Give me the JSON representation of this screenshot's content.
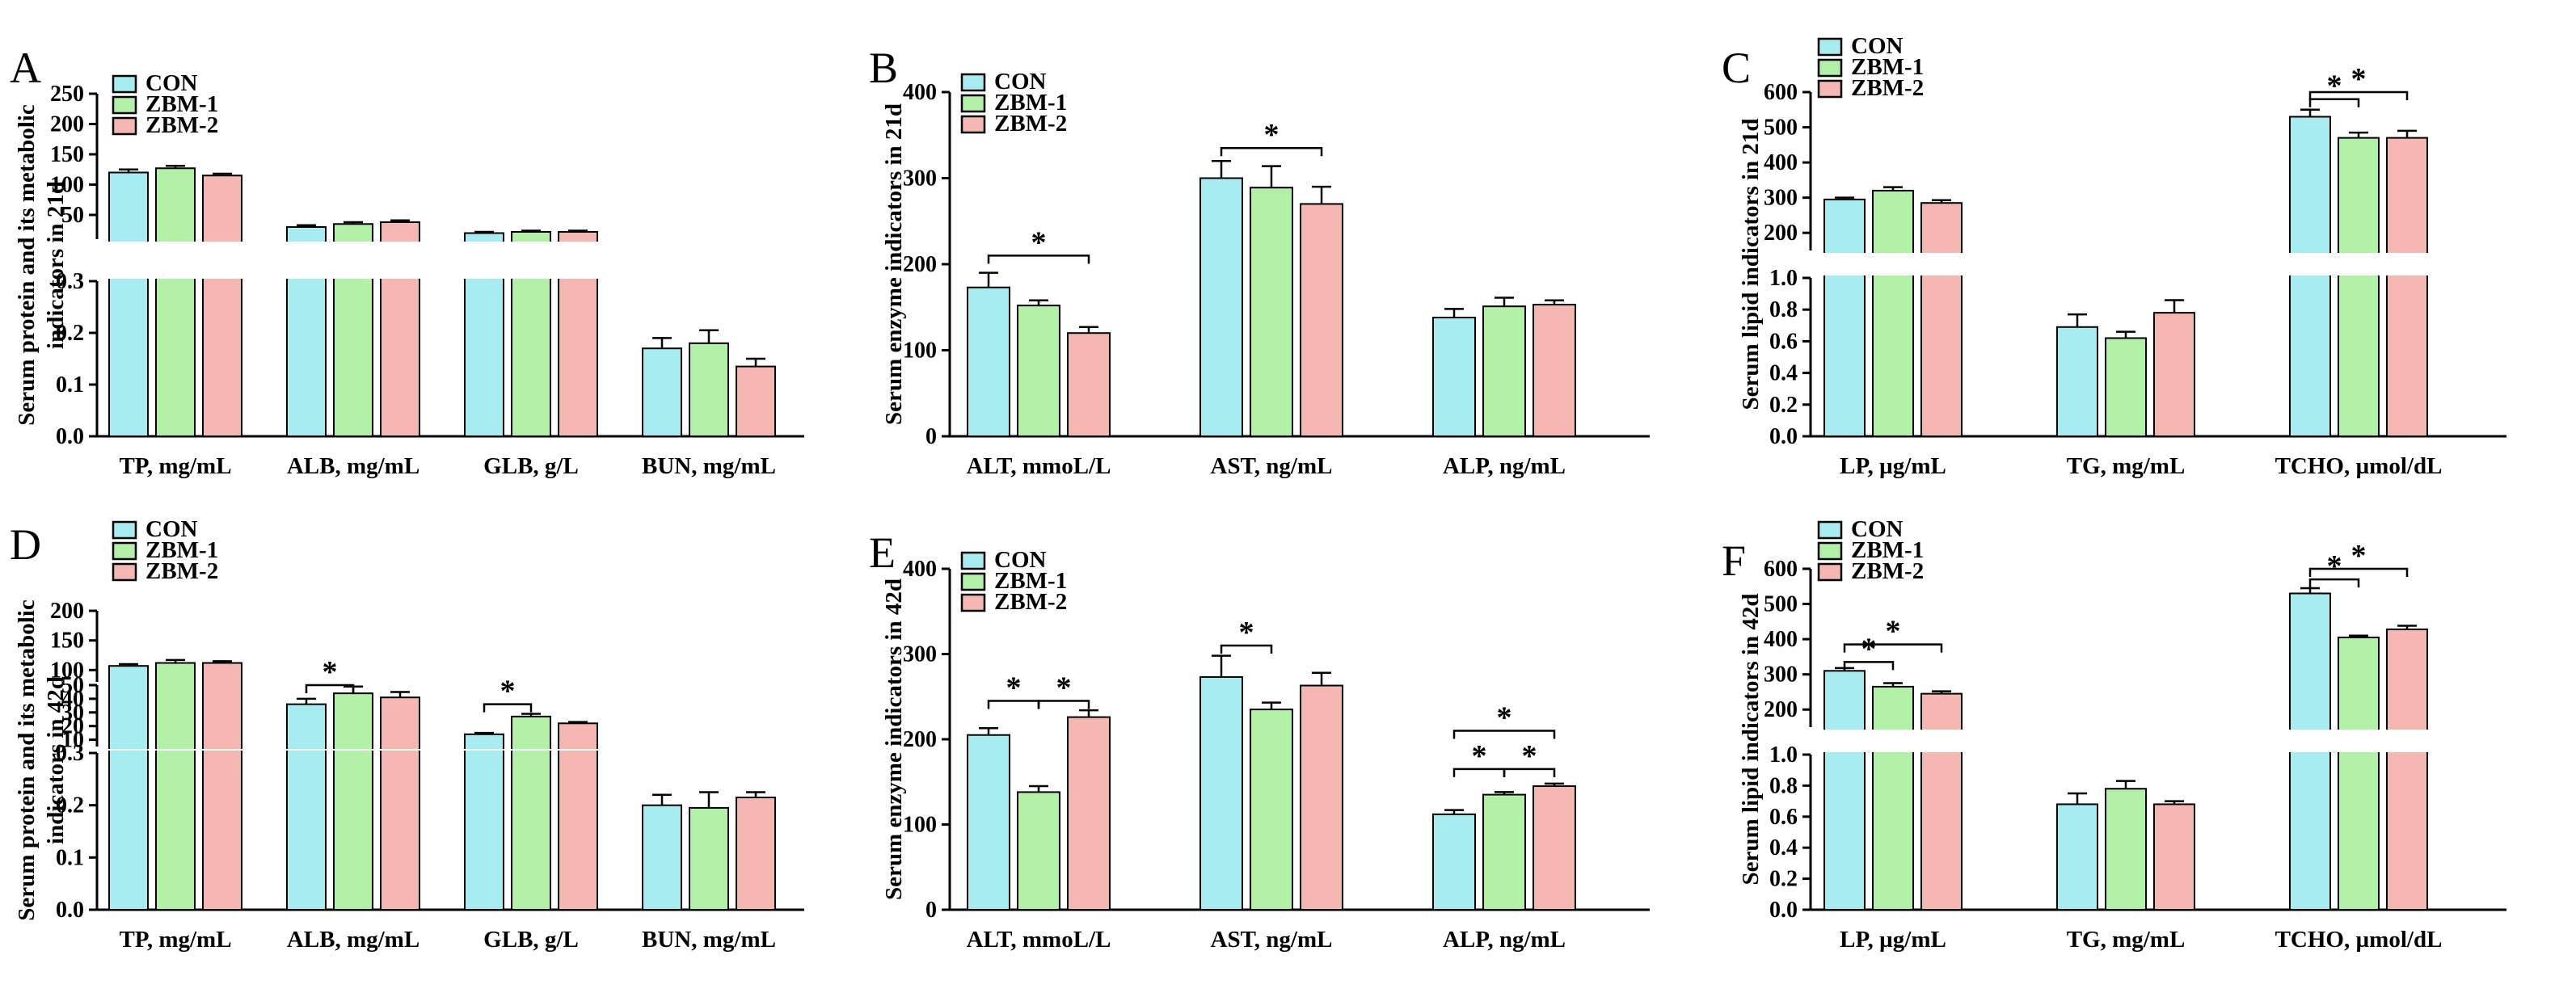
{
  "colors": {
    "CON": "#a6ecf0",
    "ZBM-1": "#b2f0a8",
    "ZBM-2": "#f5b7b1"
  },
  "legend": [
    "CON",
    "ZBM-1",
    "ZBM-2"
  ],
  "chart_data": [
    {
      "panel": "A",
      "type": "bar",
      "ylabel_lines": [
        "Serum protein and its metabolic",
        "indicators in 21d"
      ],
      "categories": [
        "TP, mg/mL",
        "ALB, mg/mL",
        "GLB, g/L",
        "BUN, mg/mL"
      ],
      "series": [
        {
          "name": "CON",
          "values": [
            120,
            30,
            20,
            0.17
          ],
          "errors": [
            5,
            3,
            2,
            0.02
          ]
        },
        {
          "name": "ZBM-1",
          "values": [
            127,
            35,
            22,
            0.18
          ],
          "errors": [
            4,
            3,
            2,
            0.025
          ]
        },
        {
          "name": "ZBM-2",
          "values": [
            115,
            38,
            22,
            0.135
          ],
          "errors": [
            3,
            3,
            2,
            0.015
          ]
        }
      ],
      "segments": [
        {
          "range": [
            0,
            0.3
          ],
          "ticks": [
            "0.0",
            "0.1",
            "0.2",
            "0.3"
          ]
        },
        {
          "range": [
            10,
            250
          ],
          "ticks": [
            "50",
            "100",
            "150",
            "200",
            "250"
          ]
        }
      ],
      "significance": []
    },
    {
      "panel": "B",
      "type": "bar",
      "ylabel_lines": [
        "Serum enzyme indicators in 21d"
      ],
      "categories": [
        "ALT, mmoL/L",
        "AST, ng/mL",
        "ALP, ng/mL"
      ],
      "series": [
        {
          "name": "CON",
          "values": [
            173,
            300,
            138
          ],
          "errors": [
            17,
            20,
            10
          ]
        },
        {
          "name": "ZBM-1",
          "values": [
            152,
            289,
            151
          ],
          "errors": [
            6,
            25,
            10
          ]
        },
        {
          "name": "ZBM-2",
          "values": [
            120,
            270,
            153
          ],
          "errors": [
            7,
            20,
            5
          ]
        }
      ],
      "segments": [
        {
          "range": [
            0,
            400
          ],
          "ticks": [
            "0",
            "100",
            "200",
            "300",
            "400"
          ]
        }
      ],
      "significance": [
        {
          "group": 0,
          "from": 0,
          "to": 2,
          "y": 210,
          "label": "*"
        },
        {
          "group": 1,
          "from": 0,
          "to": 2,
          "y": 335,
          "label": "*"
        }
      ]
    },
    {
      "panel": "C",
      "type": "bar",
      "ylabel_lines": [
        "Serum lipid indicators in 21d"
      ],
      "categories": [
        "LP, µg/mL",
        "TG, mg/mL",
        "TCHO, µmol/dL"
      ],
      "series": [
        {
          "name": "CON",
          "values": [
            295,
            0.69,
            530
          ],
          "errors": [
            5,
            0.08,
            20
          ]
        },
        {
          "name": "ZBM-1",
          "values": [
            320,
            0.62,
            470
          ],
          "errors": [
            10,
            0.04,
            15
          ]
        },
        {
          "name": "ZBM-2",
          "values": [
            285,
            0.78,
            470
          ],
          "errors": [
            8,
            0.08,
            20
          ]
        }
      ],
      "segments": [
        {
          "range": [
            0,
            1.0
          ],
          "ticks": [
            "0.0",
            "0.2",
            "0.4",
            "0.6",
            "0.8",
            "1.0"
          ]
        },
        {
          "range": [
            150,
            600
          ],
          "ticks": [
            "200",
            "300",
            "400",
            "500",
            "600"
          ]
        }
      ],
      "significance": [
        {
          "group": 2,
          "from": 0,
          "to": 1,
          "y": 580,
          "label": "*"
        },
        {
          "group": 2,
          "from": 0,
          "to": 2,
          "y": 630,
          "label": "*"
        }
      ]
    },
    {
      "panel": "D",
      "type": "bar",
      "ylabel_lines": [
        "Serum protein and its metabolic",
        "indicators in 42d"
      ],
      "categories": [
        "TP, mg/mL",
        "ALB, mg/mL",
        "GLB, g/L",
        "BUN, mg/mL"
      ],
      "series": [
        {
          "name": "CON",
          "values": [
            107,
            36,
            14,
            0.2
          ],
          "errors": [
            3,
            4,
            1,
            0.02
          ]
        },
        {
          "name": "ZBM-1",
          "values": [
            112,
            44,
            27,
            0.195
          ],
          "errors": [
            5,
            5,
            2,
            0.03
          ]
        },
        {
          "name": "ZBM-2",
          "values": [
            112,
            41,
            22,
            0.215
          ],
          "errors": [
            3,
            4,
            1,
            0.01
          ]
        }
      ],
      "segments": [
        {
          "range": [
            0,
            0.3
          ],
          "ticks": [
            "0.0",
            "0.1",
            "0.2",
            "0.3"
          ]
        },
        {
          "range": [
            5,
            50
          ],
          "ticks": [
            "10",
            "20",
            "30",
            "40",
            "50"
          ]
        },
        {
          "range": [
            80,
            200
          ],
          "ticks": [
            "100",
            "150",
            "200"
          ]
        }
      ],
      "significance": [
        {
          "group": 1,
          "from": 0,
          "to": 1,
          "y": 56,
          "label": "*"
        },
        {
          "group": 2,
          "from": 0,
          "to": 1,
          "y": 36,
          "label": "*"
        }
      ]
    },
    {
      "panel": "E",
      "type": "bar",
      "ylabel_lines": [
        "Serum enzyme indicators in 42d"
      ],
      "categories": [
        "ALT, mmoL/L",
        "AST, ng/mL",
        "ALP, ng/mL"
      ],
      "series": [
        {
          "name": "CON",
          "values": [
            205,
            273,
            112
          ],
          "errors": [
            8,
            25,
            5
          ]
        },
        {
          "name": "ZBM-1",
          "values": [
            138,
            235,
            135
          ],
          "errors": [
            7,
            8,
            3
          ]
        },
        {
          "name": "ZBM-2",
          "values": [
            226,
            263,
            145
          ],
          "errors": [
            8,
            15,
            3
          ]
        }
      ],
      "segments": [
        {
          "range": [
            0,
            400
          ],
          "ticks": [
            "0",
            "100",
            "200",
            "300",
            "400"
          ]
        }
      ],
      "significance": [
        {
          "group": 0,
          "from": 0,
          "to": 1,
          "y": 245,
          "label": "*"
        },
        {
          "group": 0,
          "from": 1,
          "to": 2,
          "y": 245,
          "label": "*"
        },
        {
          "group": 1,
          "from": 0,
          "to": 1,
          "y": 310,
          "label": "*"
        },
        {
          "group": 2,
          "from": 0,
          "to": 1,
          "y": 165,
          "label": "*"
        },
        {
          "group": 2,
          "from": 1,
          "to": 2,
          "y": 165,
          "label": "*"
        },
        {
          "group": 2,
          "from": 0,
          "to": 2,
          "y": 210,
          "label": "*"
        }
      ]
    },
    {
      "panel": "F",
      "type": "bar",
      "ylabel_lines": [
        "Serum lipid indicators in 42d"
      ],
      "categories": [
        "LP, µg/mL",
        "TG, mg/mL",
        "TCHO, µmol/dL"
      ],
      "series": [
        {
          "name": "CON",
          "values": [
            310,
            0.68,
            530
          ],
          "errors": [
            8,
            0.07,
            15
          ]
        },
        {
          "name": "ZBM-1",
          "values": [
            265,
            0.78,
            405
          ],
          "errors": [
            10,
            0.05,
            5
          ]
        },
        {
          "name": "ZBM-2",
          "values": [
            245,
            0.68,
            428
          ],
          "errors": [
            7,
            0.02,
            10
          ]
        }
      ],
      "segments": [
        {
          "range": [
            0,
            1.0
          ],
          "ticks": [
            "0.0",
            "0.2",
            "0.4",
            "0.6",
            "0.8",
            "1.0"
          ]
        },
        {
          "range": [
            150,
            600
          ],
          "ticks": [
            "200",
            "300",
            "400",
            "500",
            "600"
          ]
        }
      ],
      "significance": [
        {
          "group": 0,
          "from": 0,
          "to": 1,
          "y": 335,
          "label": "*"
        },
        {
          "group": 0,
          "from": 0,
          "to": 2,
          "y": 385,
          "label": "*"
        },
        {
          "group": 2,
          "from": 0,
          "to": 1,
          "y": 570,
          "label": "*"
        },
        {
          "group": 2,
          "from": 0,
          "to": 2,
          "y": 615,
          "label": "*"
        }
      ]
    }
  ]
}
